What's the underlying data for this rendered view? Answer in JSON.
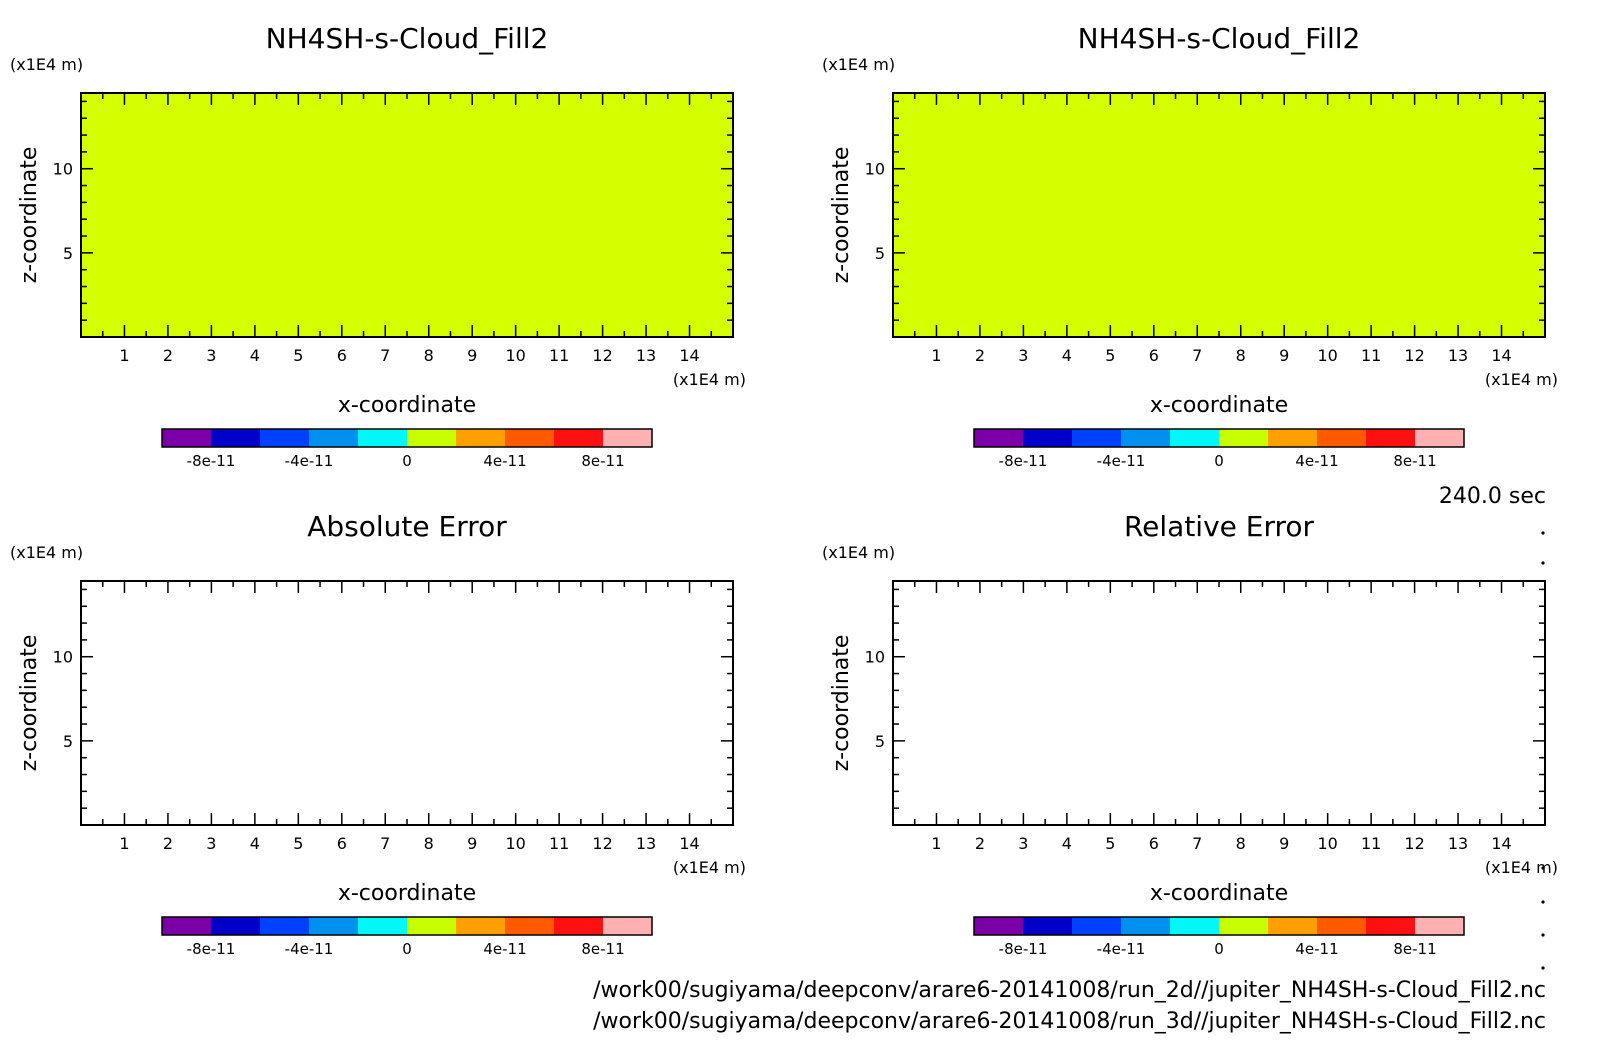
{
  "time_label": "240.0 sec",
  "footer": {
    "paths": [
      "/work00/sugiyama/deepconv/arare6-20141008/run_2d//jupiter_NH4SH-s-Cloud_Fill2.nc",
      "/work00/sugiyama/deepconv/arare6-20141008/run_3d//jupiter_NH4SH-s-Cloud_Fill2.nc"
    ]
  },
  "colors": {
    "fill_value_color": "#d4ff00",
    "frame": "#000000",
    "background": "#ffffff"
  },
  "colorbar": {
    "colors": [
      "#7b00a8",
      "#0000c8",
      "#0040ff",
      "#0090f0",
      "#00f8f8",
      "#c8ff00",
      "#ffa000",
      "#ff5a00",
      "#ff1010",
      "#ffb0b0"
    ],
    "tick_labels": [
      "-8e-11",
      "-4e-11",
      "0",
      "4e-11",
      "8e-11"
    ],
    "tick_values": [
      -8e-11,
      -4e-11,
      0,
      4e-11,
      8e-11
    ],
    "range": [
      -1e-10,
      1e-10
    ]
  },
  "chart_data": [
    {
      "type": "heatmap",
      "title": "NH4SH-s-Cloud_Fill2",
      "xlabel": "x-coordinate",
      "ylabel": "z-coordinate",
      "x_unit": "(x1E4 m)",
      "y_unit": "(x1E4 m)",
      "xlim": [
        0,
        15
      ],
      "ylim": [
        0,
        14.5
      ],
      "x_ticks": [
        1,
        2,
        3,
        4,
        5,
        6,
        7,
        8,
        9,
        10,
        11,
        12,
        13,
        14
      ],
      "y_ticks": [
        5,
        10
      ],
      "uniform_value": 0,
      "filled": true
    },
    {
      "type": "heatmap",
      "title": "NH4SH-s-Cloud_Fill2",
      "xlabel": "x-coordinate",
      "ylabel": "z-coordinate",
      "x_unit": "(x1E4 m)",
      "y_unit": "(x1E4 m)",
      "xlim": [
        0,
        15
      ],
      "ylim": [
        0,
        14.5
      ],
      "x_ticks": [
        1,
        2,
        3,
        4,
        5,
        6,
        7,
        8,
        9,
        10,
        11,
        12,
        13,
        14
      ],
      "y_ticks": [
        5,
        10
      ],
      "uniform_value": 0,
      "filled": true
    },
    {
      "type": "heatmap",
      "title": "Absolute Error",
      "xlabel": "x-coordinate",
      "ylabel": "z-coordinate",
      "x_unit": "(x1E4 m)",
      "y_unit": "(x1E4 m)",
      "xlim": [
        0,
        15
      ],
      "ylim": [
        0,
        14.5
      ],
      "x_ticks": [
        1,
        2,
        3,
        4,
        5,
        6,
        7,
        8,
        9,
        10,
        11,
        12,
        13,
        14
      ],
      "y_ticks": [
        5,
        10
      ],
      "filled": false
    },
    {
      "type": "heatmap",
      "title": "Relative Error",
      "xlabel": "x-coordinate",
      "ylabel": "z-coordinate",
      "x_unit": "(x1E4 m)",
      "y_unit": "(x1E4 m)",
      "xlim": [
        0,
        15
      ],
      "ylim": [
        0,
        14.5
      ],
      "x_ticks": [
        1,
        2,
        3,
        4,
        5,
        6,
        7,
        8,
        9,
        10,
        11,
        12,
        13,
        14
      ],
      "y_ticks": [
        5,
        10
      ],
      "filled": false
    }
  ]
}
